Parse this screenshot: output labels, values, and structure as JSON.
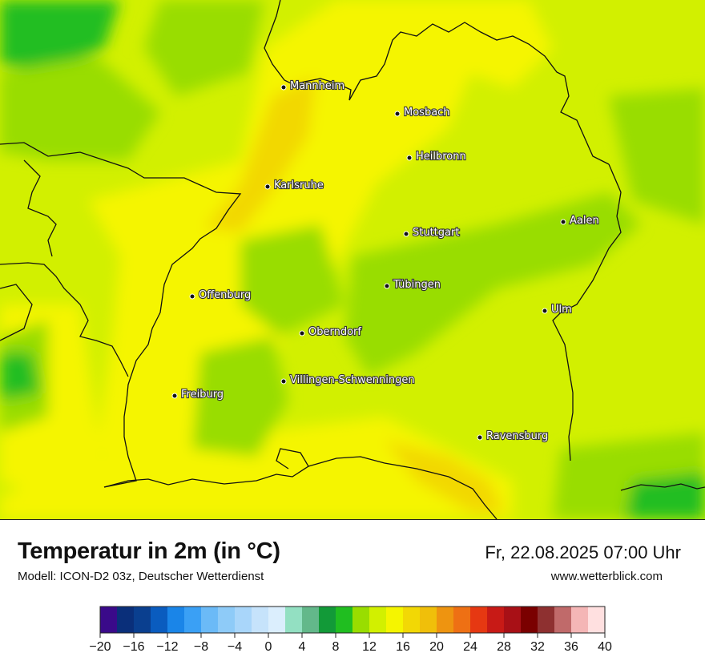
{
  "map": {
    "cities": [
      {
        "name": "Mannheim"
      },
      {
        "name": "Mosbach"
      },
      {
        "name": "Heilbronn"
      },
      {
        "name": "Karlsruhe"
      },
      {
        "name": "Aalen"
      },
      {
        "name": "Stuttgart"
      },
      {
        "name": "Tübingen"
      },
      {
        "name": "Offenburg"
      },
      {
        "name": "Ulm"
      },
      {
        "name": "Oberndorf"
      },
      {
        "name": "Villingen-Schwenningen"
      },
      {
        "name": "Freiburg"
      },
      {
        "name": "Ravensburg"
      }
    ]
  },
  "footer": {
    "title": "Temperatur in 2m (in °C)",
    "subtitle": "Modell: ICON-D2 03z, Deutscher Wetterdienst",
    "datetime": "Fr, 22.08.2025 07:00 Uhr",
    "website": "www.wetterblick.com"
  },
  "legend": {
    "colors": [
      "#3a0a8a",
      "#0a2f7a",
      "#0a3f8f",
      "#0a5cbf",
      "#1a85e8",
      "#3aa0f5",
      "#6bbaf7",
      "#8ecbf8",
      "#a9d6fa",
      "#c6e3fb",
      "#dbeefd",
      "#93e0c2",
      "#63b88a",
      "#129a38",
      "#20be20",
      "#99dd00",
      "#d2f000",
      "#f5f500",
      "#f2d805",
      "#f0bf0a",
      "#ee9410",
      "#ee7014",
      "#e63812",
      "#c81a16",
      "#a81016",
      "#7a0000",
      "#8e3030",
      "#c06a6a",
      "#f4b6b6",
      "#ffe0e0"
    ],
    "tick_labels": [
      "−20",
      "−16",
      "−12",
      "−8",
      "−4",
      "0",
      "4",
      "8",
      "12",
      "16",
      "20",
      "24",
      "28",
      "32",
      "36",
      "40"
    ]
  }
}
